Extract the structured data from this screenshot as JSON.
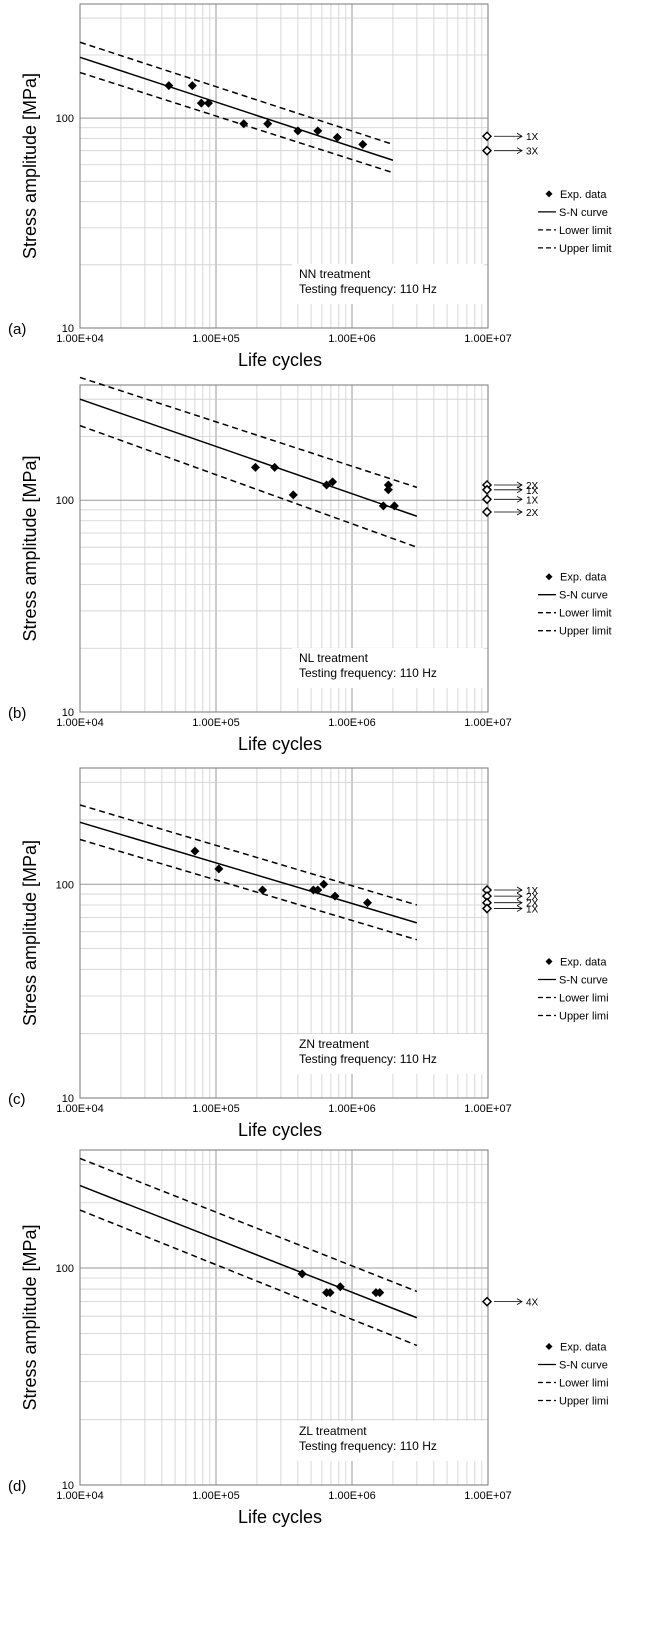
{
  "figure": {
    "legend": [
      "Exp. data",
      "S-N curve",
      "Lower limit",
      "Upper limit"
    ]
  },
  "chart_data": [
    {
      "type": "scatter",
      "panel_label": "(a)",
      "treatment": "NN treatment",
      "frequency": "Testing frequency: 110 Hz",
      "xlabel": "Life cycles",
      "ylabel": "Stress amplitude [MPa]",
      "x_scale": "log",
      "y_scale": "log",
      "xlim": [
        10000,
        10000000
      ],
      "ylim": [
        10,
        350
      ],
      "x_ticks": [
        "1.00E+04",
        "1.00E+05",
        "1.00E+06",
        "1.00E+07"
      ],
      "y_ticks": [
        "10",
        "100"
      ],
      "grid": true,
      "legend": [
        "Exp. data",
        "S-N curve",
        "Lower limit",
        "Upper limit"
      ],
      "legend_position": "right",
      "series": [
        {
          "name": "Exp. data",
          "kind": "points",
          "points": [
            [
              45000,
              143
            ],
            [
              67000,
              143
            ],
            [
              78000,
              118
            ],
            [
              88000,
              118
            ],
            [
              160000,
              94
            ],
            [
              240000,
              94
            ],
            [
              400000,
              87
            ],
            [
              560000,
              87
            ],
            [
              780000,
              81
            ],
            [
              1200000,
              75
            ]
          ]
        },
        {
          "name": "S-N curve",
          "kind": "line",
          "points": [
            [
              10000,
              195
            ],
            [
              2000000,
              63
            ]
          ]
        },
        {
          "name": "Lower limit",
          "kind": "dashed",
          "points": [
            [
              10000,
              165
            ],
            [
              2000000,
              55
            ]
          ]
        },
        {
          "name": "Upper limit",
          "kind": "dashed",
          "points": [
            [
              10000,
              230
            ],
            [
              2000000,
              75
            ]
          ]
        }
      ],
      "runouts": [
        {
          "x": 11000000,
          "y": 82,
          "label": "1X"
        },
        {
          "x": 11000000,
          "y": 70,
          "label": "3X"
        }
      ]
    },
    {
      "type": "scatter",
      "panel_label": "(b)",
      "treatment": "NL treatment",
      "frequency": "Testing frequency: 110 Hz",
      "xlabel": "Life cycles",
      "ylabel": "Stress amplitude [MPa]",
      "x_scale": "log",
      "y_scale": "log",
      "xlim": [
        10000,
        10000000
      ],
      "ylim": [
        10,
        350
      ],
      "x_ticks": [
        "1.00E+04",
        "1.00E+05",
        "1.00E+06",
        "1.00E+07"
      ],
      "y_ticks": [
        "10",
        "100"
      ],
      "grid": true,
      "legend": [
        "Exp. data",
        "S-N curve",
        "Lower limit",
        "Upper limit"
      ],
      "legend_position": "right",
      "series": [
        {
          "name": "Exp. data",
          "kind": "points",
          "points": [
            [
              195000,
              143
            ],
            [
              270000,
              143
            ],
            [
              370000,
              106
            ],
            [
              650000,
              118
            ],
            [
              720000,
              122
            ],
            [
              1700000,
              94
            ],
            [
              1850000,
              118
            ],
            [
              1850000,
              112
            ],
            [
              2050000,
              94
            ]
          ]
        },
        {
          "name": "S-N curve",
          "kind": "line",
          "points": [
            [
              10000,
              300
            ],
            [
              3000000,
              84
            ]
          ]
        },
        {
          "name": "Lower limit",
          "kind": "dashed",
          "points": [
            [
              10000,
              225
            ],
            [
              3000000,
              60
            ]
          ]
        },
        {
          "name": "Upper limit",
          "kind": "dashed",
          "points": [
            [
              10000,
              380
            ],
            [
              3000000,
              115
            ]
          ]
        }
      ],
      "runouts": [
        {
          "x": 11000000,
          "y": 118,
          "label": "2X"
        },
        {
          "x": 11000000,
          "y": 112,
          "label": "1X"
        },
        {
          "x": 11000000,
          "y": 101,
          "label": "1X"
        },
        {
          "x": 11000000,
          "y": 88,
          "label": "2X"
        }
      ]
    },
    {
      "type": "scatter",
      "panel_label": "(c)",
      "treatment": "ZN treatment",
      "frequency": "Testing frequency: 110 Hz",
      "xlabel": "Life cycles",
      "ylabel": "Stress amplitude [MPa]",
      "x_scale": "log",
      "y_scale": "log",
      "xlim": [
        10000,
        10000000
      ],
      "ylim": [
        10,
        350
      ],
      "x_ticks": [
        "1.00E+04",
        "1.00E+05",
        "1.00E+06",
        "1.00E+07"
      ],
      "y_ticks": [
        "10",
        "100"
      ],
      "grid": true,
      "legend": [
        "Exp. data",
        "S-N curve",
        "Lower limi",
        "Upper limi"
      ],
      "legend_position": "right",
      "series": [
        {
          "name": "Exp. data",
          "kind": "points",
          "points": [
            [
              70000,
              143
            ],
            [
              105000,
              118
            ],
            [
              220000,
              94
            ],
            [
              520000,
              94
            ],
            [
              560000,
              94
            ],
            [
              620000,
              100
            ],
            [
              750000,
              88
            ],
            [
              1300000,
              82
            ]
          ]
        },
        {
          "name": "S-N curve",
          "kind": "line",
          "points": [
            [
              10000,
              195
            ],
            [
              3000000,
              66
            ]
          ]
        },
        {
          "name": "Lower limi",
          "kind": "dashed",
          "points": [
            [
              10000,
              162
            ],
            [
              3000000,
              55
            ]
          ]
        },
        {
          "name": "Upper limi",
          "kind": "dashed",
          "points": [
            [
              10000,
              235
            ],
            [
              3000000,
              80
            ]
          ]
        }
      ],
      "runouts": [
        {
          "x": 11000000,
          "y": 94,
          "label": "1X"
        },
        {
          "x": 11000000,
          "y": 88,
          "label": "2X"
        },
        {
          "x": 11000000,
          "y": 82,
          "label": "2X"
        },
        {
          "x": 11000000,
          "y": 77,
          "label": "1X"
        }
      ]
    },
    {
      "type": "scatter",
      "panel_label": "(d)",
      "treatment": "ZL treatment",
      "frequency": "Testing frequency: 110 Hz",
      "xlabel": "Life cycles",
      "ylabel": "Stress amplitude [MPa]",
      "x_scale": "log",
      "y_scale": "log",
      "xlim": [
        10000,
        10000000
      ],
      "ylim": [
        10,
        350
      ],
      "x_ticks": [
        "1.00E+04",
        "1.00E+05",
        "1.00E+06",
        "1.00E+07"
      ],
      "y_ticks": [
        "10",
        "100"
      ],
      "grid": true,
      "legend": [
        "Exp. data",
        "S-N curve",
        "Lower limi",
        "Upper limi"
      ],
      "legend_position": "right",
      "series": [
        {
          "name": "Exp. data",
          "kind": "points",
          "points": [
            [
              430000,
              94
            ],
            [
              650000,
              77
            ],
            [
              690000,
              77
            ],
            [
              820000,
              82
            ],
            [
              1500000,
              77
            ],
            [
              1600000,
              77
            ]
          ]
        },
        {
          "name": "S-N curve",
          "kind": "line",
          "points": [
            [
              10000,
              240
            ],
            [
              3000000,
              59
            ]
          ]
        },
        {
          "name": "Lower limi",
          "kind": "dashed",
          "points": [
            [
              10000,
              185
            ],
            [
              3000000,
              44
            ]
          ]
        },
        {
          "name": "Upper limi",
          "kind": "dashed",
          "points": [
            [
              10000,
              320
            ],
            [
              3000000,
              78
            ]
          ]
        }
      ],
      "runouts": [
        {
          "x": 11000000,
          "y": 70,
          "label": "4X"
        }
      ]
    }
  ]
}
